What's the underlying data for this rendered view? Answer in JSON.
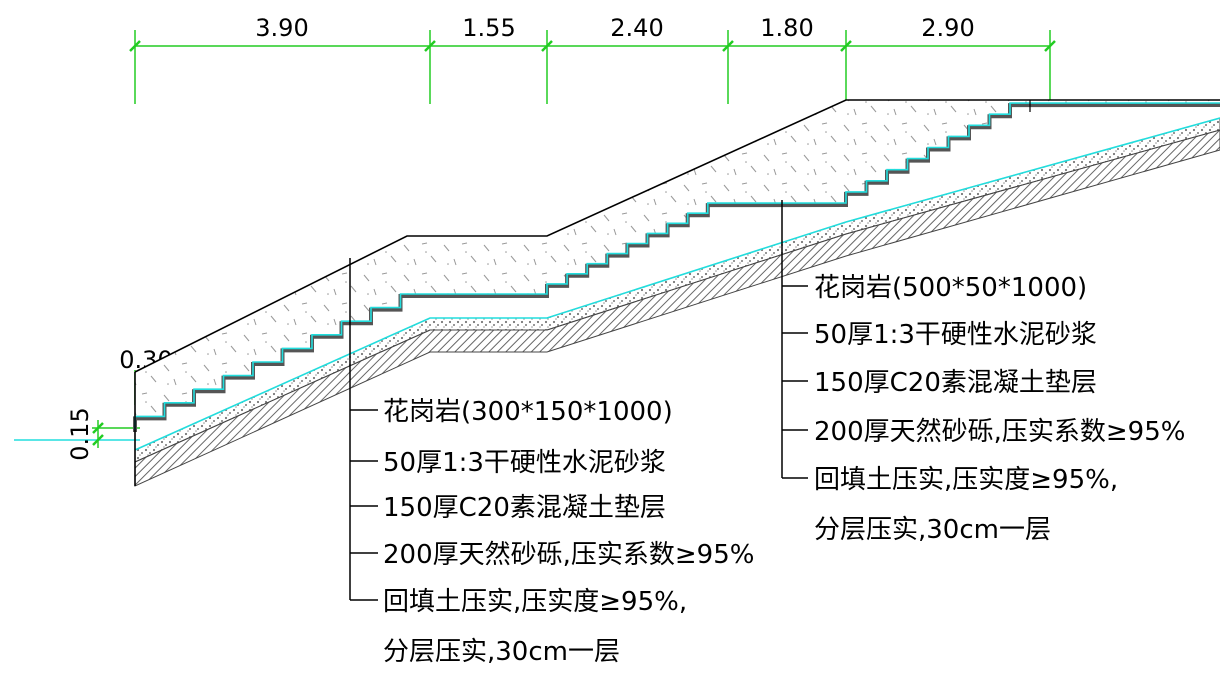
{
  "dimensions": {
    "top": [
      "3.90",
      "1.55",
      "2.40",
      "1.80",
      "2.90"
    ],
    "step_tread": "0.30",
    "step_riser": "0.15"
  },
  "callout_left": {
    "lines": [
      "花岗岩(300*150*1000)",
      "50厚1:3干硬性水泥砂浆",
      "150厚C20素混凝土垫层",
      "200厚天然砂砾,压实系数≥95%",
      "回填土压实,压实度≥95%,",
      "分层压实,30cm一层"
    ]
  },
  "callout_right": {
    "lines": [
      "花岗岩(500*50*1000)",
      "50厚1:3干硬性水泥砂浆",
      "150厚C20素混凝土垫层",
      "200厚天然砂砾,压实系数≥95%",
      "回填土压实,压实度≥95%,",
      "分层压实,30cm一层"
    ]
  },
  "colors": {
    "dimension": "#22cc22",
    "finish_line": "#22dddd",
    "outline": "#000000",
    "stone": "#555555",
    "gravel": "#888888"
  }
}
